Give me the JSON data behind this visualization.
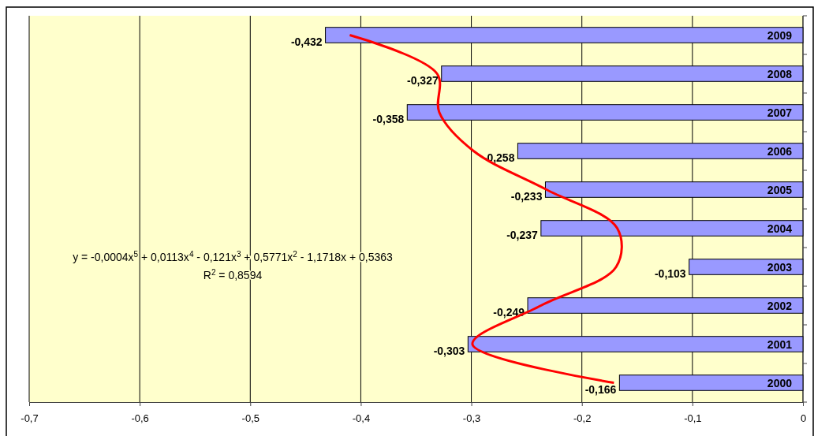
{
  "chart_data": {
    "type": "bar",
    "orientation": "horizontal",
    "categories": [
      "2009",
      "2008",
      "2007",
      "2006",
      "2005",
      "2004",
      "2003",
      "2002",
      "2001",
      "2000"
    ],
    "series": [
      {
        "color": "#9999ff",
        "values": [
          -0.432,
          -0.327,
          -0.358,
          -0.258,
          -0.233,
          -0.237,
          -0.103,
          -0.249,
          -0.303,
          -0.166
        ],
        "value_labels": [
          "-0,432",
          "-0,327",
          "-0,358",
          "-0,258",
          "-0,233",
          "-0,237",
          "-0,103",
          "-0,249",
          "-0,303",
          "-0,166"
        ]
      },
      {
        "type": "line",
        "color": "#ff0000",
        "values": [
          -0.41,
          -0.331,
          -0.329,
          -0.298,
          -0.232,
          -0.168,
          -0.169,
          -0.237,
          -0.299,
          -0.171
        ]
      }
    ],
    "xlim": [
      -0.7,
      0
    ],
    "xticks": [
      {
        "value": -0.7,
        "label": "-0,7"
      },
      {
        "value": -0.6,
        "label": "-0,6"
      },
      {
        "value": -0.5,
        "label": "-0,5"
      },
      {
        "value": -0.4,
        "label": "-0,4"
      },
      {
        "value": -0.3,
        "label": "-0,3"
      },
      {
        "value": -0.2,
        "label": "-0,2"
      },
      {
        "value": -0.1,
        "label": "-0,1"
      },
      0
    ],
    "grid": "x",
    "annotations": [
      "y = -0,0004x$^{5}$ + 0,0113x$^{4}$ - 0,121x$^{3}$ + 0,5771x$^{2}$ - 1,1718x + 0,5363",
      "R$^{2}$ = 0,8594"
    ]
  }
}
